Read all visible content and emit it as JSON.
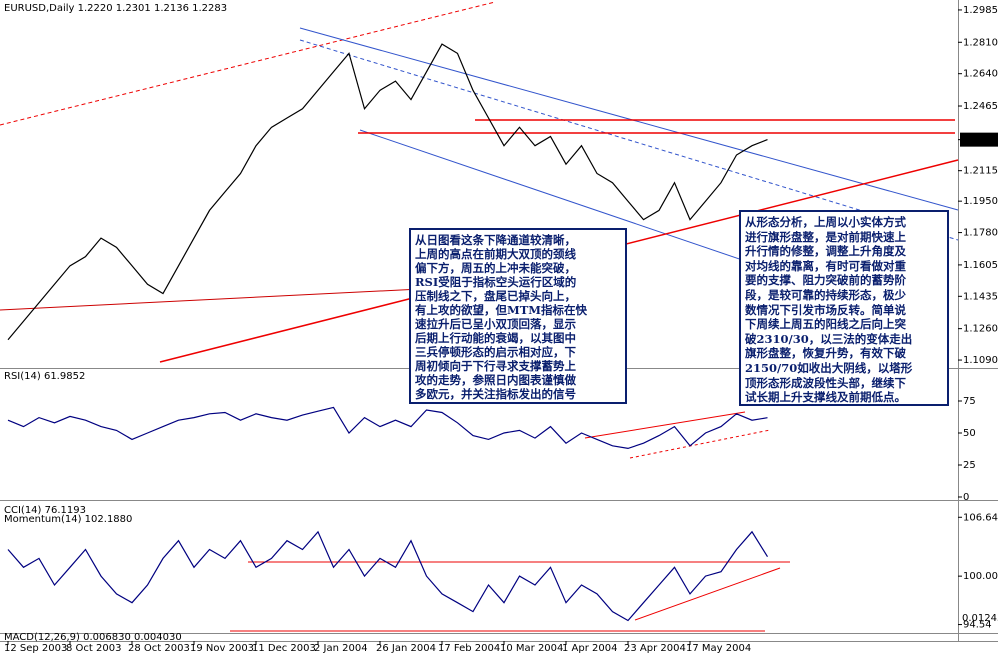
{
  "chart_data": [
    {
      "type": "line",
      "title": "EURUSD,Daily  1.2220 1.2301 1.2136 1.2283",
      "categories": [
        "12 Sep 2003",
        null,
        null,
        null,
        "8 Oct 2003",
        null,
        null,
        null,
        "28 Oct 2003",
        null,
        null,
        null,
        "19 Nov 2003",
        null,
        null,
        null,
        "11 Dec 2003",
        null,
        null,
        null,
        "2 Jan 2004",
        null,
        null,
        null,
        "26 Jan 2004",
        null,
        null,
        null,
        "17 Feb 2004",
        null,
        null,
        null,
        "10 Mar 2004",
        null,
        null,
        null,
        "1 Apr 2004",
        null,
        null,
        null,
        "23 Apr 2004",
        null,
        null,
        null,
        "17 May 2004",
        null,
        null,
        null,
        null,
        null
      ],
      "series": [
        {
          "name": "EURUSD",
          "color": "#000000",
          "values": [
            1.12,
            1.13,
            1.14,
            1.15,
            1.16,
            1.165,
            1.175,
            1.17,
            1.16,
            1.15,
            1.145,
            1.16,
            1.175,
            1.19,
            1.2,
            1.21,
            1.225,
            1.235,
            1.24,
            1.245,
            1.255,
            1.265,
            1.275,
            1.245,
            1.255,
            1.26,
            1.25,
            1.265,
            1.28,
            1.275,
            1.255,
            1.24,
            1.225,
            1.235,
            1.225,
            1.23,
            1.215,
            1.225,
            1.21,
            1.205,
            1.195,
            1.185,
            1.19,
            1.205,
            1.185,
            1.195,
            1.205,
            1.22,
            1.225,
            1.2283
          ]
        }
      ],
      "ylim": [
        1.1047,
        1.3028
      ],
      "yticks": [
        1.2985,
        {
          "value": 1.281,
          "label": "1.2810"
        },
        {
          "value": 1.264,
          "label": "1.2640"
        },
        1.2465,
        1.2283,
        1.2115,
        {
          "value": 1.195,
          "label": "1.1950"
        },
        {
          "value": 1.178,
          "label": "1.1780"
        },
        1.1605,
        1.1435,
        {
          "value": 1.126,
          "label": "1.1260"
        },
        {
          "value": 1.109,
          "label": "1.1090"
        }
      ],
      "annotations": [
        [
          "从日图看这条下降通道较清晰，",
          "上周的高点在前期大双顶的颈线",
          "偏下方，周五的上冲未能突破，",
          "RSI受阻于指标空头运行区域的",
          "压制线之下，盘尾已掉头向上，",
          "有上攻的欲望，但MTM指标在快",
          "速拉升后已呈小双顶回落，显示",
          "后期上行动能的衰竭，以其图中",
          "三兵停顿形态的启示相对应，下",
          "周初倾向于下行寻求支撑蓄势上",
          "攻的走势，参照日内图表谨慎做",
          "多欧元，并关注指标发出的信号"
        ],
        [
          "从形态分析，上周以小实体方式",
          "进行旗形盘整，是对前期快速上",
          "升行情的修整，调整上升角度及",
          "对均线的靠离，有时可看做对重",
          "要的支撑、阻力突破前的蓄势阶",
          "段，是较可靠的持续形态，极少",
          "数情况下引发市场反转。简单说",
          "下周续上周五的阳线之后向上突",
          "破2310/30，以三法的变体走出",
          "旗形盘整，恢复升势，有效下破",
          "2150/70如收出大阴线，以塔形",
          "顶形态形成波段性头部，继续下",
          "试长期上升支撑线及前期低点。"
        ]
      ]
    },
    {
      "type": "line",
      "title": "RSI(14) 61.9852",
      "series": [
        {
          "name": "RSI(14)",
          "color": "#000080",
          "values": [
            60,
            55,
            62,
            58,
            63,
            60,
            55,
            52,
            45,
            50,
            55,
            60,
            62,
            65,
            66,
            60,
            65,
            62,
            60,
            64,
            67,
            70,
            50,
            62,
            55,
            60,
            55,
            68,
            66,
            58,
            48,
            45,
            50,
            52,
            46,
            55,
            42,
            50,
            45,
            40,
            38,
            42,
            48,
            55,
            40,
            50,
            55,
            65,
            60,
            61.9852
          ]
        }
      ],
      "ylim": [
        0,
        100
      ],
      "yticks": [
        0,
        25,
        50,
        75
      ]
    },
    {
      "type": "line",
      "title": "Momentum(14) 102.1880",
      "subtitle": "CCI(14) 76.1193",
      "series": [
        {
          "name": "Momentum(14)",
          "color": "#000080",
          "values": [
            103,
            101,
            102,
            99,
            101,
            103,
            100,
            98,
            97,
            99,
            102,
            104,
            101,
            103,
            102,
            104,
            101,
            102,
            104,
            103,
            105,
            101,
            103,
            100,
            102,
            101,
            104,
            100,
            98,
            97,
            96,
            99,
            97,
            100,
            99,
            101,
            97,
            99,
            98,
            96,
            95,
            97,
            99,
            101,
            98,
            100,
            100.5,
            103,
            105,
            102.188
          ]
        }
      ],
      "ylim": [
        93.7,
        108.25
      ],
      "yticks": [
        106.64,
        {
          "value": 100,
          "label": "100.00"
        },
        94.54
      ]
    },
    {
      "type": "label",
      "title": "MACD(12,26,9) 0.006830 0.004030",
      "scale_label": "0.01243"
    }
  ]
}
